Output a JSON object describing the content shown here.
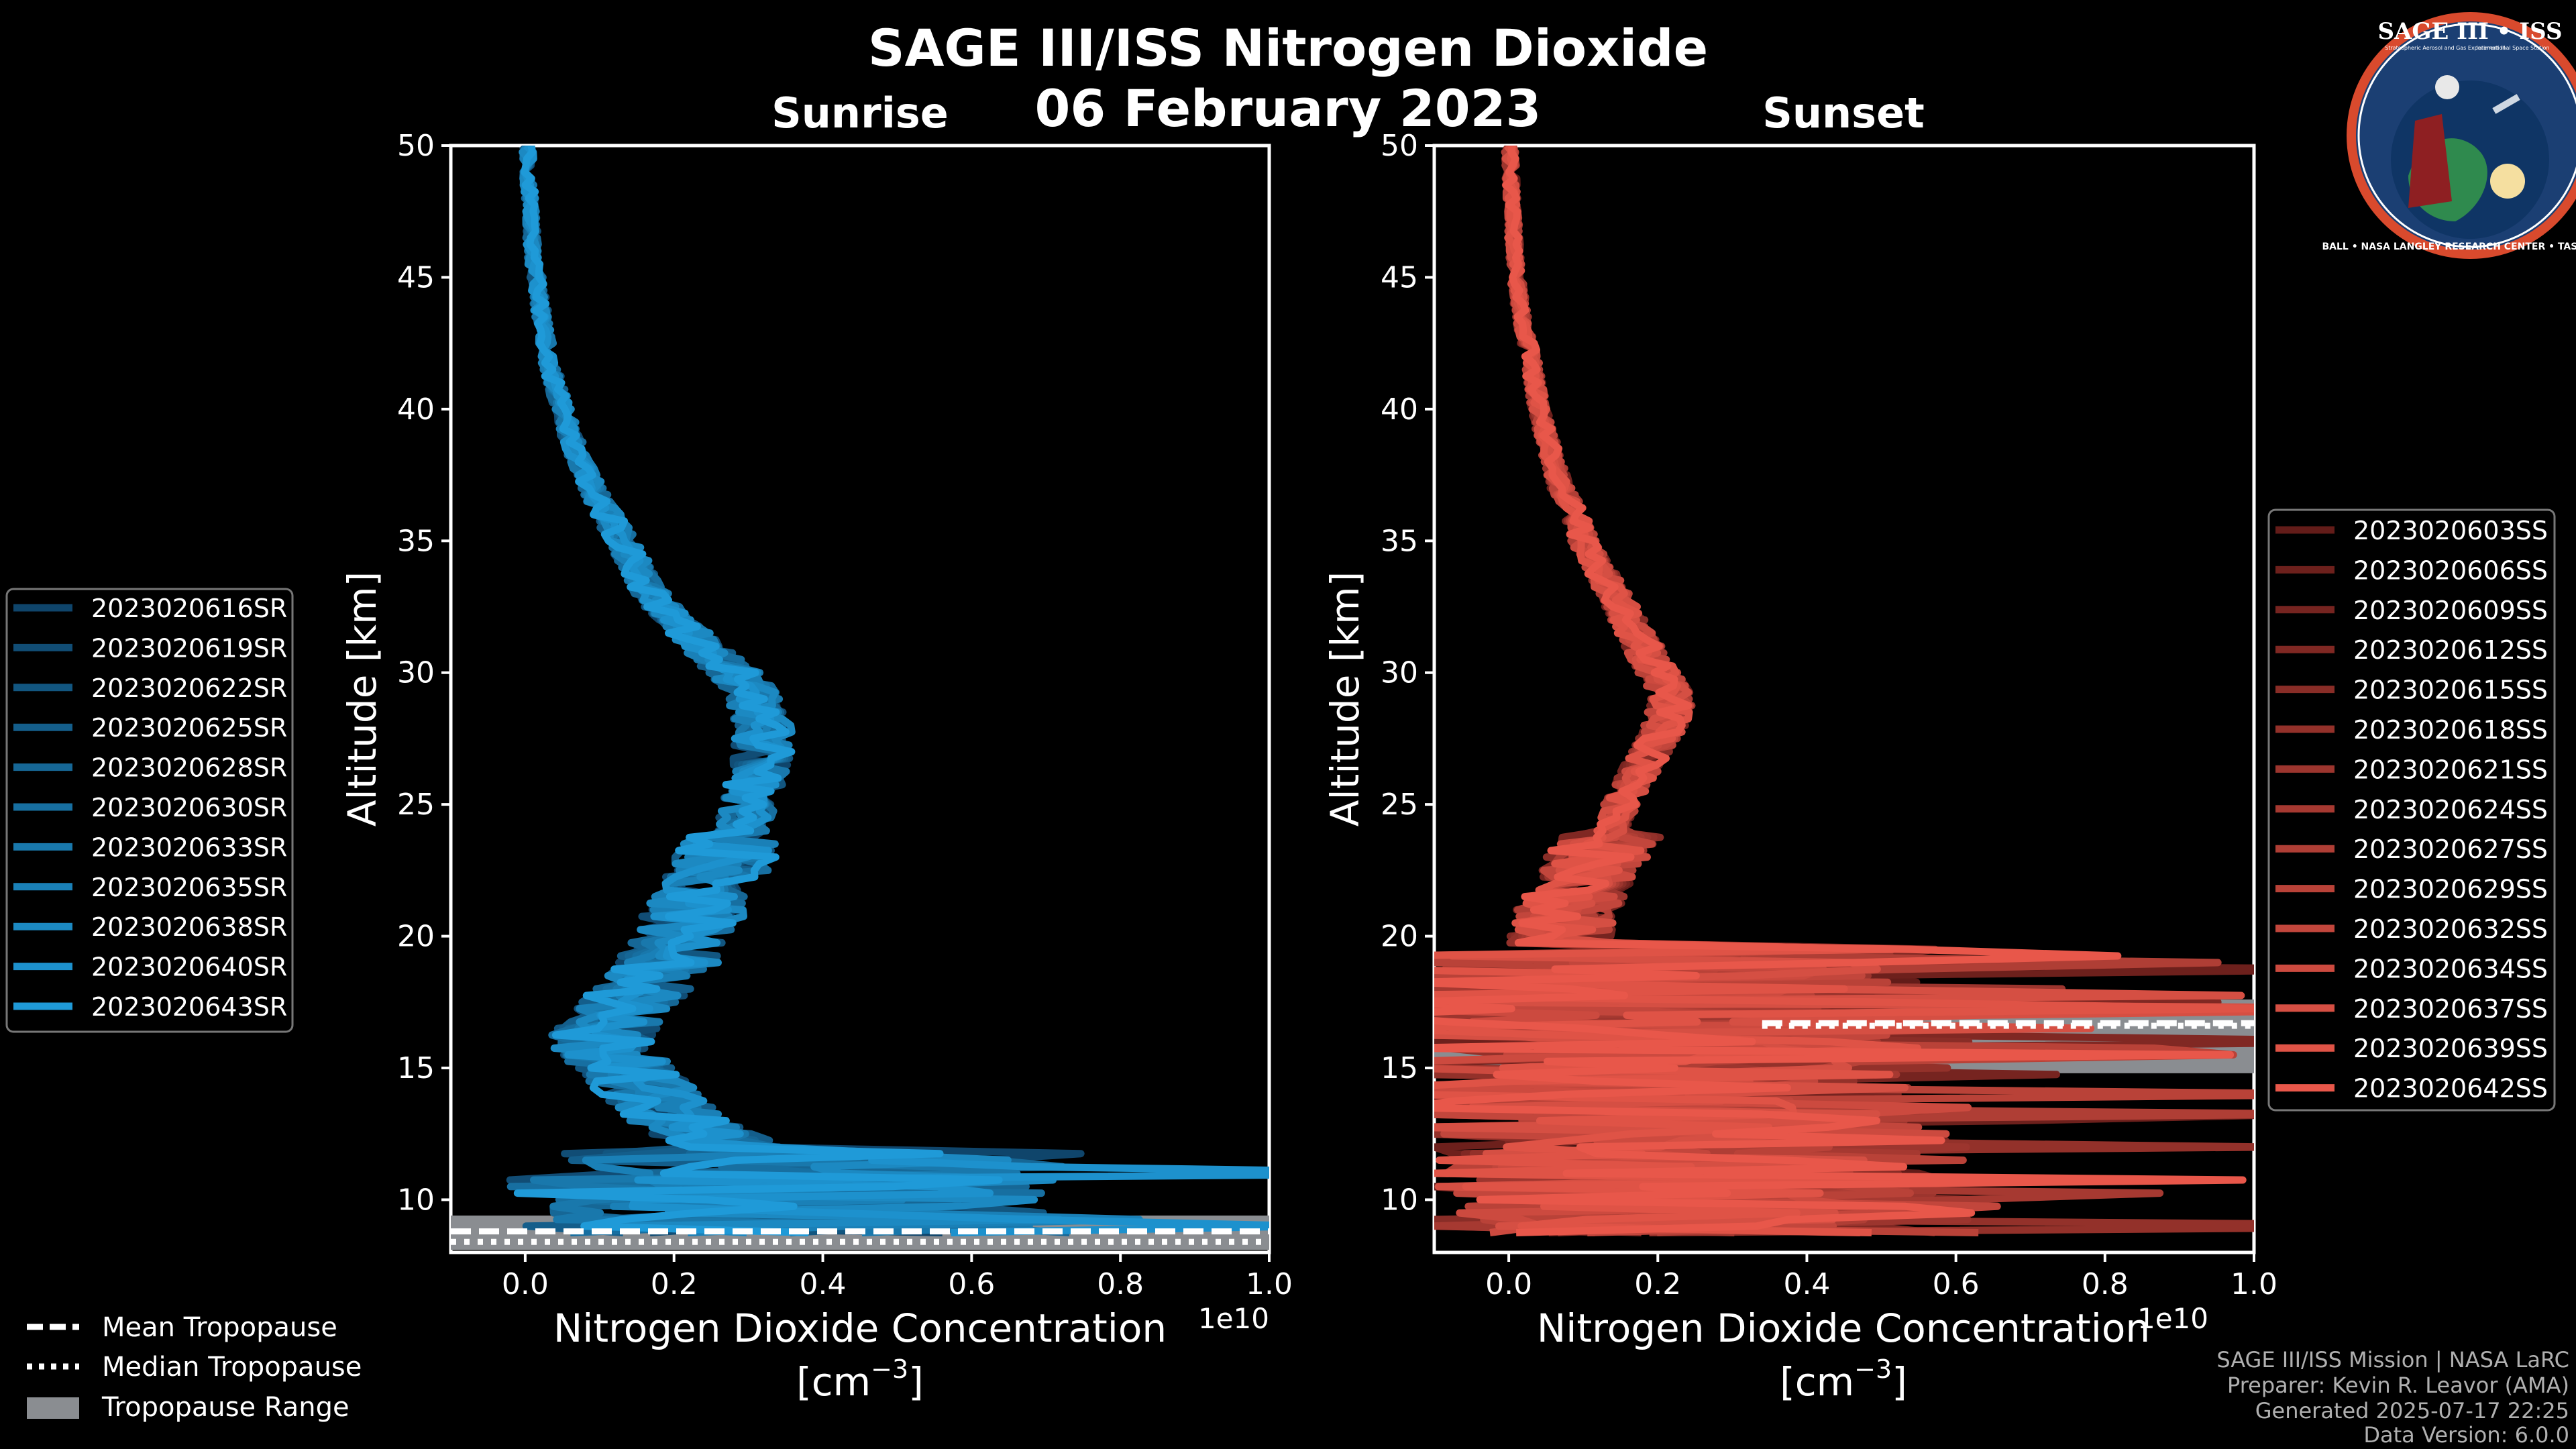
{
  "figure": {
    "title": "SAGE III/ISS Nitrogen Dioxide",
    "date": "06 February 2023",
    "footer": [
      "SAGE III/ISS Mission | NASA LaRC",
      "Preparer: Kevin R. Leavor (AMA)",
      "Generated 2025-07-17 22:25",
      "Data Version: 6.0.0"
    ],
    "logo": {
      "top_text": "SAGE III • ISS",
      "sub_text_left": "Stratospheric Aerosol and Gas Experiment III",
      "sub_text_right": "International Space Station",
      "ring_text": "BALL • NASA LANGLEY RESEARCH CENTER • TAS-I • ESA"
    },
    "colors": {
      "sunrise": "#1f9ad8",
      "sunset": "#e8574a",
      "tropopause_range": "#8a8d91"
    }
  },
  "chart_data": [
    {
      "type": "line",
      "panel": "sunrise",
      "title": "Sunrise",
      "xlabel": "Nitrogen Dioxide Concentration",
      "xunit": "[cm",
      "xunit_exp": "−3",
      "xunit_close": "]",
      "ylabel": "Altitude [km]",
      "x_offset_label": "1e10",
      "xlim": [
        -0.1,
        1.0
      ],
      "ylim": [
        8,
        50
      ],
      "xticks": [
        0.0,
        0.2,
        0.4,
        0.6,
        0.8,
        1.0
      ],
      "xtick_labels": [
        "0.0",
        "0.2",
        "0.4",
        "0.6",
        "0.8",
        "1.0"
      ],
      "yticks": [
        10,
        15,
        20,
        25,
        30,
        35,
        40,
        45,
        50
      ],
      "ytick_labels": [
        "10",
        "15",
        "20",
        "25",
        "30",
        "35",
        "40",
        "45",
        "50"
      ],
      "series_names": [
        "2023020616SR",
        "2023020619SR",
        "2023020622SR",
        "2023020625SR",
        "2023020628SR",
        "2023020630SR",
        "2023020633SR",
        "2023020635SR",
        "2023020638SR",
        "2023020640SR",
        "2023020643SR"
      ],
      "mean_profile": {
        "altitude_km": [
          9,
          10,
          11,
          12,
          13,
          14,
          15,
          16,
          17,
          18,
          19,
          20,
          21,
          22,
          23,
          24,
          25,
          26,
          27,
          28,
          29,
          30,
          31,
          32,
          33,
          34,
          35,
          36,
          37,
          38,
          39,
          40,
          41,
          42,
          43,
          44,
          45,
          46,
          47,
          48,
          49,
          50
        ],
        "no2_1e10": [
          0.25,
          0.22,
          0.24,
          0.28,
          0.2,
          0.17,
          0.13,
          0.1,
          0.12,
          0.16,
          0.19,
          0.21,
          0.23,
          0.25,
          0.27,
          0.29,
          0.3,
          0.31,
          0.32,
          0.32,
          0.31,
          0.28,
          0.24,
          0.2,
          0.17,
          0.15,
          0.13,
          0.11,
          0.09,
          0.075,
          0.06,
          0.05,
          0.04,
          0.03,
          0.025,
          0.02,
          0.015,
          0.01,
          0.008,
          0.006,
          0.004,
          0.003
        ]
      },
      "tropopause": {
        "mean_km": 8.8,
        "median_km": 8.4,
        "range_km": [
          8.1,
          9.4
        ]
      }
    },
    {
      "type": "line",
      "panel": "sunset",
      "title": "Sunset",
      "xlabel": "Nitrogen Dioxide Concentration",
      "xunit": "[cm",
      "xunit_exp": "−3",
      "xunit_close": "]",
      "ylabel": "Altitude [km]",
      "x_offset_label": "1e10",
      "xlim": [
        -0.1,
        1.0
      ],
      "ylim": [
        8,
        50
      ],
      "xticks": [
        0.0,
        0.2,
        0.4,
        0.6,
        0.8,
        1.0
      ],
      "xtick_labels": [
        "0.0",
        "0.2",
        "0.4",
        "0.6",
        "0.8",
        "1.0"
      ],
      "yticks": [
        10,
        15,
        20,
        25,
        30,
        35,
        40,
        45,
        50
      ],
      "ytick_labels": [
        "10",
        "15",
        "20",
        "25",
        "30",
        "35",
        "40",
        "45",
        "50"
      ],
      "series_names": [
        "2023020603SS",
        "2023020606SS",
        "2023020609SS",
        "2023020612SS",
        "2023020615SS",
        "2023020618SS",
        "2023020621SS",
        "2023020624SS",
        "2023020627SS",
        "2023020629SS",
        "2023020632SS",
        "2023020634SS",
        "2023020637SS",
        "2023020639SS",
        "2023020642SS"
      ],
      "mean_profile": {
        "altitude_km": [
          9,
          10,
          11,
          12,
          13,
          14,
          15,
          16,
          17,
          18,
          19,
          20,
          21,
          22,
          23,
          24,
          25,
          26,
          27,
          28,
          29,
          30,
          31,
          32,
          33,
          34,
          35,
          36,
          37,
          38,
          39,
          40,
          41,
          42,
          43,
          44,
          45,
          46,
          47,
          48,
          49,
          50
        ],
        "no2_1e10": [
          0.15,
          0.18,
          0.12,
          0.14,
          0.08,
          0.06,
          0.05,
          0.07,
          0.05,
          0.06,
          0.06,
          0.07,
          0.08,
          0.1,
          0.12,
          0.14,
          0.15,
          0.17,
          0.19,
          0.21,
          0.22,
          0.2,
          0.18,
          0.16,
          0.14,
          0.12,
          0.1,
          0.09,
          0.07,
          0.06,
          0.05,
          0.04,
          0.035,
          0.03,
          0.02,
          0.015,
          0.01,
          0.008,
          0.006,
          0.004,
          0.003,
          0.002
        ]
      },
      "tropopause": {
        "mean_km": 16.7,
        "median_km": 16.6,
        "range_km": [
          14.8,
          17.6
        ]
      }
    }
  ],
  "legend_tropopause": {
    "mean": "Mean Tropopause",
    "median": "Median Tropopause",
    "range": "Tropopause Range"
  }
}
